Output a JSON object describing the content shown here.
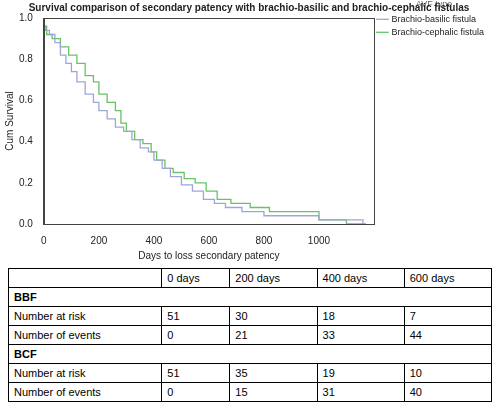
{
  "chart_data": {
    "type": "line",
    "title": "Survival comparison of secondary patency with brachio-basilic and brachio-cephalic fistulas",
    "x_label": "Days to loss secondary patency",
    "y_label": "Cum Survival",
    "legend_title": "AVF type",
    "legend": "top-right",
    "grid": false,
    "line_style": "step",
    "xlim": [
      0,
      1200
    ],
    "xticks": [
      0,
      200,
      400,
      600,
      800,
      1000
    ],
    "ylim": [
      0,
      1
    ],
    "yticks": [
      {
        "value": 0,
        "label": "0.0"
      },
      {
        "value": 0.2,
        "label": "0.2"
      },
      {
        "value": 0.4,
        "label": "0.4"
      },
      {
        "value": 0.6,
        "label": "0.6"
      },
      {
        "value": 0.8,
        "label": "0.8"
      },
      {
        "value": 1,
        "label": "1.0"
      }
    ],
    "series": [
      {
        "name": "Brachio-basilic fistula",
        "color": "#9ea6d8",
        "x": [
          0,
          5,
          20,
          40,
          60,
          80,
          100,
          120,
          150,
          180,
          200,
          230,
          260,
          290,
          320,
          350,
          380,
          400,
          430,
          460,
          500,
          540,
          580,
          620,
          660,
          720,
          800,
          900,
          1000,
          1160,
          1170
        ],
        "values": [
          1.0,
          0.96,
          0.94,
          0.92,
          0.88,
          0.82,
          0.78,
          0.74,
          0.69,
          0.63,
          0.59,
          0.55,
          0.51,
          0.47,
          0.45,
          0.41,
          0.37,
          0.35,
          0.31,
          0.27,
          0.23,
          0.19,
          0.16,
          0.12,
          0.1,
          0.08,
          0.06,
          0.04,
          0.04,
          0.02,
          0.0
        ]
      },
      {
        "name": "Brachio-cephalic fistula",
        "color": "#66c466",
        "x": [
          0,
          10,
          30,
          60,
          90,
          120,
          150,
          180,
          200,
          230,
          260,
          280,
          300,
          330,
          360,
          390,
          410,
          440,
          470,
          510,
          550,
          590,
          630,
          680,
          750,
          820,
          900,
          1000,
          1100,
          1170
        ],
        "values": [
          1.0,
          0.96,
          0.92,
          0.9,
          0.86,
          0.82,
          0.78,
          0.72,
          0.69,
          0.63,
          0.59,
          0.55,
          0.49,
          0.45,
          0.41,
          0.39,
          0.35,
          0.31,
          0.27,
          0.25,
          0.22,
          0.2,
          0.16,
          0.12,
          0.1,
          0.08,
          0.06,
          0.06,
          0.02,
          0.0
        ]
      }
    ]
  },
  "table": {
    "columns": [
      "0 days",
      "200 days",
      "400 days",
      "600 days"
    ],
    "groups": [
      {
        "name": "BBF",
        "rows": [
          {
            "label": "Number at risk",
            "values": [
              51,
              30,
              18,
              7
            ]
          },
          {
            "label": "Number of events",
            "values": [
              0,
              21,
              33,
              44
            ]
          }
        ]
      },
      {
        "name": "BCF",
        "rows": [
          {
            "label": "Number at risk",
            "values": [
              51,
              35,
              19,
              10
            ]
          },
          {
            "label": "Number of events",
            "values": [
              0,
              15,
              31,
              40
            ]
          }
        ]
      }
    ]
  }
}
